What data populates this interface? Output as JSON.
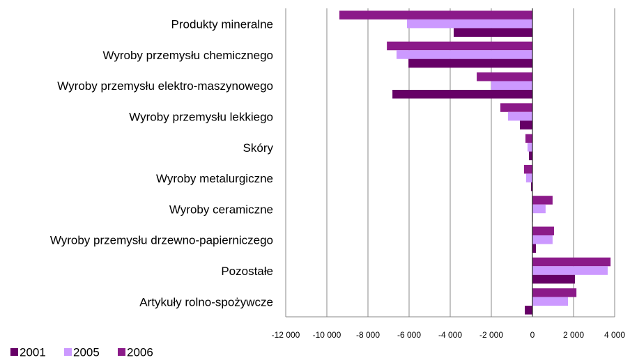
{
  "chart_data": {
    "type": "bar",
    "orientation": "horizontal",
    "categories": [
      "Produkty mineralne",
      "Wyroby przemysłu chemicznego",
      "Wyroby przemysłu elektro-maszynowego",
      "Wyroby przemysłu lekkiego",
      "Skóry",
      "Wyroby metalurgiczne",
      "Wyroby ceramiczne",
      "Wyroby przemysłu drzewno-papierniczego",
      "Pozostałe",
      "Artykuły rolno-spożywcze"
    ],
    "series": [
      {
        "name": "2001",
        "color": "#660066",
        "values": [
          -3830,
          -6030,
          -6810,
          -610,
          -170,
          -70,
          20,
          170,
          2070,
          -370
        ]
      },
      {
        "name": "2005",
        "color": "#cc99ff",
        "values": [
          -6100,
          -6610,
          -2000,
          -1190,
          -240,
          -310,
          640,
          980,
          3660,
          1730
        ]
      },
      {
        "name": "2006",
        "color": "#8b1a89",
        "values": [
          -9390,
          -7080,
          -2710,
          -1560,
          -340,
          -410,
          980,
          1050,
          3800,
          2140
        ]
      }
    ],
    "xlim": [
      -12000,
      4000
    ],
    "xticks": [
      {
        "value": -12000,
        "label": "-12 000"
      },
      {
        "value": -10000,
        "label": "-10 000"
      },
      {
        "value": -8000,
        "label": "-8 000"
      },
      {
        "value": -6000,
        "label": "-6 000"
      },
      {
        "value": -4000,
        "label": "-4 000"
      },
      {
        "value": -2000,
        "label": "-2 000"
      },
      0,
      {
        "value": 2000,
        "label": "2 000"
      },
      {
        "value": 4000,
        "label": "4 000"
      }
    ],
    "grid": true,
    "legend": "bottom-left"
  }
}
